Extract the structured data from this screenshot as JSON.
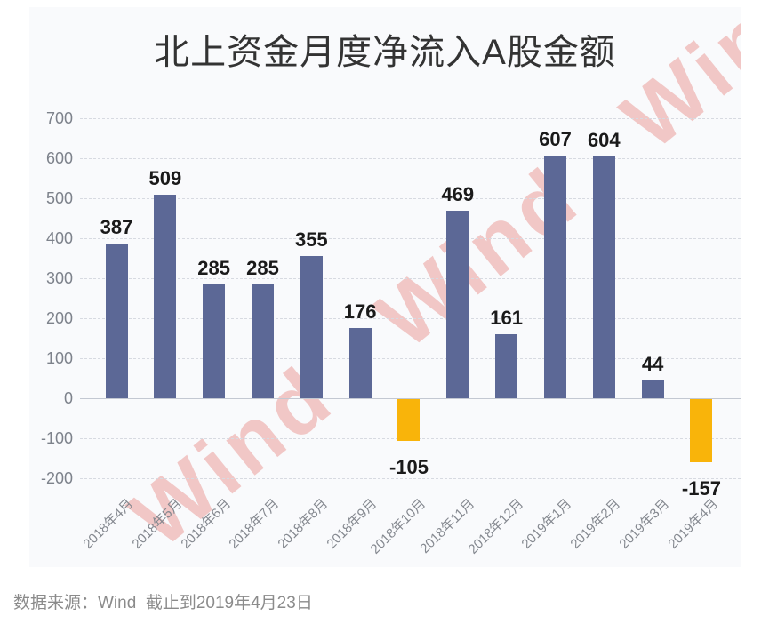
{
  "page": {
    "title": "北上资金月度净流入A股金额",
    "footer_note": "数据来源：Wind  截止到2019年4月23日",
    "watermark_text": "Wind   Wind   Wind"
  },
  "chart_data": {
    "type": "bar",
    "title": "北上资金月度净流入A股金额",
    "categories": [
      "2018年4月",
      "2018年5月",
      "2018年6月",
      "2018年7月",
      "2018年8月",
      "2018年9月",
      "2018年10月",
      "2018年11月",
      "2018年12月",
      "2019年1月",
      "2019年2月",
      "2019年3月",
      "2019年4月"
    ],
    "values": [
      387,
      509,
      285,
      285,
      355,
      176,
      -105,
      469,
      161,
      607,
      604,
      44,
      -157
    ],
    "yticks": [
      700,
      600,
      500,
      400,
      300,
      200,
      100,
      0,
      -100,
      -200
    ],
    "ylim": [
      -200,
      700
    ],
    "grid": "horizontal-dashed",
    "legend": "none",
    "bar_positive_color": "#5c6896",
    "bar_negative_color": "#f9b40a",
    "value_label_color": "#1a1a1a",
    "axis_label_color": "#7d828b",
    "watermark": "Wind",
    "source_note": "数据来源：Wind  截止到2019年4月23日"
  }
}
